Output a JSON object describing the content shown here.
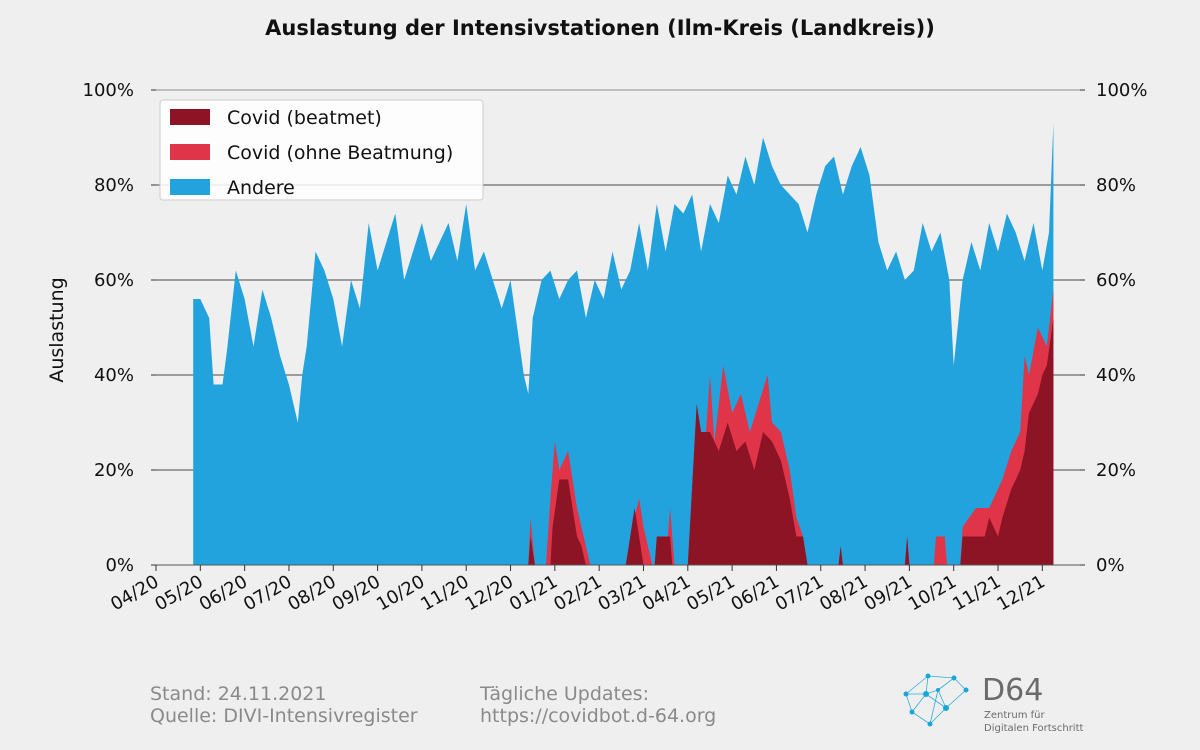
{
  "chart_data": {
    "type": "area",
    "stacked": true,
    "title": "Auslastung der Intensivstationen (Ilm-Kreis (Landkreis))",
    "ylabel": "Auslastung",
    "ylim": [
      0,
      100
    ],
    "y_ticks": [
      "0%",
      "20%",
      "40%",
      "60%",
      "80%",
      "100%"
    ],
    "y_tick_values": [
      0,
      20,
      40,
      60,
      80,
      100
    ],
    "secondary_y_axis": true,
    "grid": "horizontal",
    "legend_position": "top-left",
    "x_ticks": [
      "04/20",
      "05/20",
      "06/20",
      "07/20",
      "08/20",
      "09/20",
      "10/20",
      "11/20",
      "12/20",
      "01/21",
      "02/21",
      "03/21",
      "04/21",
      "05/21",
      "06/21",
      "07/21",
      "08/21",
      "09/21",
      "10/21",
      "11/21",
      "12/21"
    ],
    "x_tick_months": [
      0,
      1,
      2,
      3,
      4,
      5,
      6,
      7,
      8,
      9,
      10,
      11,
      12,
      13,
      14,
      15,
      16,
      17,
      18,
      19,
      20
    ],
    "x_unit": "month index since 04/20 (fractional)",
    "legend": [
      {
        "label": "Covid (beatmet)",
        "color": "#8c1425"
      },
      {
        "label": "Covid (ohne Beatmung)",
        "color": "#e03548"
      },
      {
        "label": "Andere",
        "color": "#22a3dd"
      }
    ],
    "series": [
      {
        "name": "Andere",
        "note": "values are total occupancy (top of stack) in %",
        "color": "#22a3dd",
        "points": [
          [
            0.84,
            0
          ],
          [
            0.84,
            56
          ],
          [
            1.0,
            56
          ],
          [
            1.2,
            52
          ],
          [
            1.3,
            38
          ],
          [
            1.5,
            38
          ],
          [
            1.6,
            45
          ],
          [
            1.8,
            62
          ],
          [
            2.0,
            56
          ],
          [
            2.2,
            46
          ],
          [
            2.4,
            58
          ],
          [
            2.6,
            52
          ],
          [
            2.8,
            44
          ],
          [
            3.0,
            38
          ],
          [
            3.2,
            30
          ],
          [
            3.3,
            40
          ],
          [
            3.4,
            46
          ],
          [
            3.6,
            66
          ],
          [
            3.8,
            62
          ],
          [
            4.0,
            56
          ],
          [
            4.2,
            46
          ],
          [
            4.4,
            60
          ],
          [
            4.6,
            54
          ],
          [
            4.8,
            72
          ],
          [
            5.0,
            62
          ],
          [
            5.2,
            68
          ],
          [
            5.4,
            74
          ],
          [
            5.6,
            60
          ],
          [
            5.8,
            66
          ],
          [
            6.0,
            72
          ],
          [
            6.2,
            64
          ],
          [
            6.4,
            68
          ],
          [
            6.6,
            72
          ],
          [
            6.8,
            64
          ],
          [
            7.0,
            76
          ],
          [
            7.2,
            62
          ],
          [
            7.4,
            66
          ],
          [
            7.6,
            60
          ],
          [
            7.8,
            54
          ],
          [
            8.0,
            60
          ],
          [
            8.15,
            50
          ],
          [
            8.3,
            40
          ],
          [
            8.4,
            36
          ],
          [
            8.5,
            52
          ],
          [
            8.7,
            60
          ],
          [
            8.9,
            62
          ],
          [
            9.1,
            56
          ],
          [
            9.3,
            60
          ],
          [
            9.5,
            62
          ],
          [
            9.7,
            52
          ],
          [
            9.9,
            60
          ],
          [
            10.1,
            56
          ],
          [
            10.3,
            66
          ],
          [
            10.5,
            58
          ],
          [
            10.7,
            62
          ],
          [
            10.9,
            72
          ],
          [
            11.1,
            62
          ],
          [
            11.3,
            76
          ],
          [
            11.5,
            66
          ],
          [
            11.7,
            76
          ],
          [
            11.9,
            74
          ],
          [
            12.1,
            78
          ],
          [
            12.3,
            66
          ],
          [
            12.5,
            76
          ],
          [
            12.7,
            72
          ],
          [
            12.9,
            82
          ],
          [
            13.1,
            78
          ],
          [
            13.3,
            86
          ],
          [
            13.5,
            80
          ],
          [
            13.7,
            90
          ],
          [
            13.9,
            84
          ],
          [
            14.1,
            80
          ],
          [
            14.3,
            78
          ],
          [
            14.5,
            76
          ],
          [
            14.7,
            70
          ],
          [
            14.9,
            78
          ],
          [
            15.1,
            84
          ],
          [
            15.3,
            86
          ],
          [
            15.5,
            78
          ],
          [
            15.7,
            84
          ],
          [
            15.9,
            88
          ],
          [
            16.1,
            82
          ],
          [
            16.3,
            68
          ],
          [
            16.5,
            62
          ],
          [
            16.7,
            66
          ],
          [
            16.9,
            60
          ],
          [
            17.1,
            62
          ],
          [
            17.3,
            72
          ],
          [
            17.5,
            66
          ],
          [
            17.7,
            70
          ],
          [
            17.9,
            60
          ],
          [
            18.0,
            42
          ],
          [
            18.2,
            60
          ],
          [
            18.4,
            68
          ],
          [
            18.6,
            62
          ],
          [
            18.8,
            72
          ],
          [
            19.0,
            66
          ],
          [
            19.2,
            74
          ],
          [
            19.4,
            70
          ],
          [
            19.6,
            64
          ],
          [
            19.8,
            72
          ],
          [
            20.0,
            62
          ],
          [
            20.15,
            70
          ],
          [
            20.25,
            93
          ],
          [
            20.25,
            0
          ]
        ]
      },
      {
        "name": "Covid (ohne Beatmung)",
        "note": "values are top of Covid stack (beatmet + ohne Beatmung) in %",
        "color": "#e03548",
        "points": [
          [
            8.4,
            0
          ],
          [
            8.45,
            10
          ],
          [
            8.55,
            0
          ],
          [
            8.8,
            0
          ],
          [
            8.9,
            14
          ],
          [
            9.0,
            26
          ],
          [
            9.1,
            20
          ],
          [
            9.3,
            24
          ],
          [
            9.5,
            12
          ],
          [
            9.6,
            8
          ],
          [
            9.7,
            4
          ],
          [
            9.8,
            0
          ],
          [
            10.6,
            0
          ],
          [
            10.8,
            10
          ],
          [
            10.9,
            14
          ],
          [
            11.0,
            8
          ],
          [
            11.2,
            0
          ],
          [
            11.5,
            0
          ],
          [
            11.6,
            12
          ],
          [
            11.7,
            0
          ],
          [
            12.0,
            0
          ],
          [
            12.2,
            30
          ],
          [
            12.35,
            20
          ],
          [
            12.5,
            40
          ],
          [
            12.6,
            26
          ],
          [
            12.8,
            42
          ],
          [
            13.0,
            32
          ],
          [
            13.2,
            36
          ],
          [
            13.4,
            28
          ],
          [
            13.6,
            34
          ],
          [
            13.8,
            40
          ],
          [
            13.9,
            30
          ],
          [
            14.1,
            28
          ],
          [
            14.3,
            20
          ],
          [
            14.45,
            10
          ],
          [
            14.6,
            6
          ],
          [
            14.7,
            0
          ],
          [
            15.4,
            0
          ],
          [
            15.45,
            4
          ],
          [
            15.5,
            0
          ],
          [
            16.9,
            0
          ],
          [
            16.95,
            6
          ],
          [
            17.0,
            0
          ],
          [
            17.55,
            0
          ],
          [
            17.6,
            6
          ],
          [
            17.8,
            6
          ],
          [
            17.85,
            0
          ],
          [
            18.15,
            0
          ],
          [
            18.2,
            8
          ],
          [
            18.5,
            12
          ],
          [
            18.8,
            12
          ],
          [
            19.1,
            18
          ],
          [
            19.3,
            24
          ],
          [
            19.5,
            28
          ],
          [
            19.6,
            44
          ],
          [
            19.7,
            40
          ],
          [
            19.9,
            50
          ],
          [
            20.1,
            46
          ],
          [
            20.25,
            58
          ],
          [
            20.25,
            0
          ]
        ]
      },
      {
        "name": "Covid (beatmet)",
        "color": "#8c1425",
        "points": [
          [
            8.4,
            0
          ],
          [
            8.45,
            6
          ],
          [
            8.55,
            0
          ],
          [
            8.9,
            0
          ],
          [
            8.95,
            8
          ],
          [
            9.1,
            18
          ],
          [
            9.3,
            18
          ],
          [
            9.5,
            6
          ],
          [
            9.6,
            4
          ],
          [
            9.7,
            0
          ],
          [
            10.6,
            0
          ],
          [
            10.7,
            6
          ],
          [
            10.8,
            12
          ],
          [
            10.9,
            6
          ],
          [
            11.0,
            0
          ],
          [
            11.25,
            0
          ],
          [
            11.3,
            6
          ],
          [
            11.6,
            6
          ],
          [
            11.65,
            0
          ],
          [
            12.0,
            0
          ],
          [
            12.2,
            34
          ],
          [
            12.3,
            28
          ],
          [
            12.5,
            28
          ],
          [
            12.7,
            24
          ],
          [
            12.9,
            30
          ],
          [
            13.1,
            24
          ],
          [
            13.3,
            26
          ],
          [
            13.5,
            20
          ],
          [
            13.7,
            28
          ],
          [
            13.9,
            26
          ],
          [
            14.1,
            22
          ],
          [
            14.3,
            14
          ],
          [
            14.45,
            6
          ],
          [
            14.6,
            6
          ],
          [
            14.7,
            0
          ],
          [
            15.4,
            0
          ],
          [
            15.45,
            4
          ],
          [
            15.5,
            0
          ],
          [
            16.9,
            0
          ],
          [
            16.95,
            6
          ],
          [
            17.0,
            0
          ],
          [
            18.15,
            0
          ],
          [
            18.2,
            6
          ],
          [
            18.5,
            6
          ],
          [
            18.7,
            6
          ],
          [
            18.8,
            10
          ],
          [
            19.0,
            6
          ],
          [
            19.1,
            10
          ],
          [
            19.3,
            16
          ],
          [
            19.5,
            20
          ],
          [
            19.6,
            24
          ],
          [
            19.7,
            32
          ],
          [
            19.9,
            36
          ],
          [
            20.0,
            40
          ],
          [
            20.1,
            42
          ],
          [
            20.25,
            52
          ],
          [
            20.25,
            0
          ]
        ]
      }
    ]
  },
  "footer": {
    "stand": "Stand: 24.11.2021",
    "quelle": "Quelle: DIVI-Intensivregister",
    "updates_label": "Tägliche Updates:",
    "updates_url": "https://covidbot.d-64.org"
  },
  "logo": {
    "name": "D64",
    "tagline_1": "Zentrum für",
    "tagline_2": "Digitalen Fortschritt",
    "color": "#1aa7d8"
  }
}
